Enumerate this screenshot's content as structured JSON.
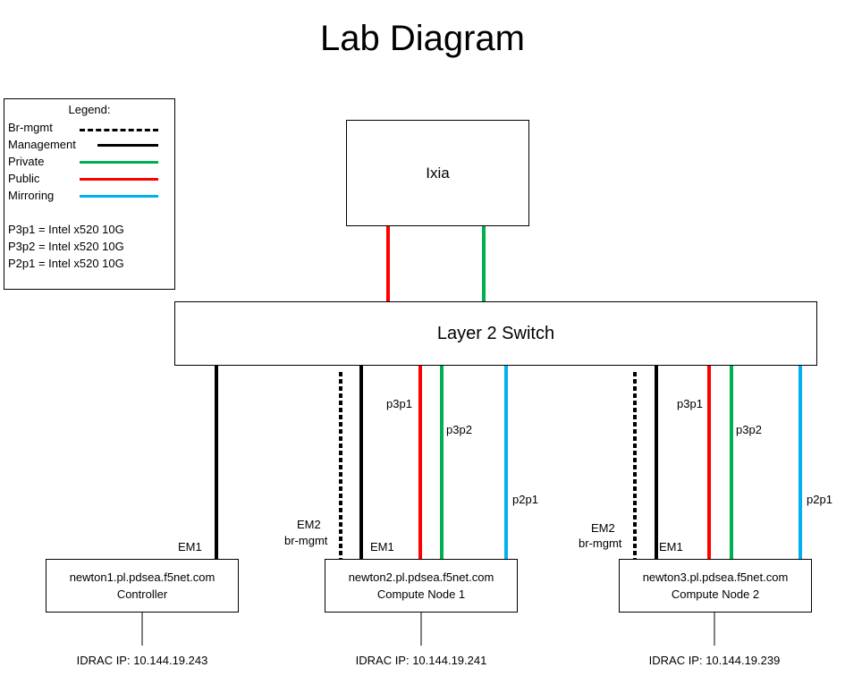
{
  "title": "Lab Diagram",
  "legend": {
    "heading": "Legend:",
    "items": [
      {
        "label": "Br-mgmt",
        "color": "#000000",
        "style": "dashed"
      },
      {
        "label": "Management",
        "color": "#000000",
        "style": "solid"
      },
      {
        "label": "Private",
        "color": "#00b050",
        "style": "solid"
      },
      {
        "label": "Public",
        "color": "#ff0000",
        "style": "solid"
      },
      {
        "label": "Mirroring",
        "color": "#00b0f0",
        "style": "solid"
      }
    ],
    "notes": [
      "P3p1 = Intel x520 10G",
      "P3p2 = Intel x520 10G",
      "P2p1 = Intel x520 10G"
    ]
  },
  "devices": {
    "ixia": "Ixia",
    "switch": "Layer 2 Switch"
  },
  "nodes": [
    {
      "host": "newton1.pl.pdsea.f5net.com",
      "role": "Controller",
      "idrac": "IDRAC IP: 10.144.19.243"
    },
    {
      "host": "newton2.pl.pdsea.f5net.com",
      "role": "Compute Node 1",
      "idrac": "IDRAC IP: 10.144.19.241"
    },
    {
      "host": "newton3.pl.pdsea.f5net.com",
      "role": "Compute Node 2",
      "idrac": "IDRAC IP: 10.144.19.239"
    }
  ],
  "port_labels": {
    "em1": "EM1",
    "em2": "EM2",
    "br_mgmt": "br-mgmt",
    "p3p1": "p3p1",
    "p3p2": "p3p2",
    "p2p1": "p2p1"
  },
  "connections": [
    {
      "from": "Ixia",
      "to": "Layer 2 Switch",
      "type": "Public"
    },
    {
      "from": "Ixia",
      "to": "Layer 2 Switch",
      "type": "Private"
    },
    {
      "from": "Layer 2 Switch",
      "to": "newton1.pl.pdsea.f5net.com",
      "type": "Management",
      "port": "EM1"
    },
    {
      "from": "Layer 2 Switch",
      "to": "newton2.pl.pdsea.f5net.com",
      "type": "Br-mgmt",
      "port": "EM2"
    },
    {
      "from": "Layer 2 Switch",
      "to": "newton2.pl.pdsea.f5net.com",
      "type": "Management",
      "port": "EM1"
    },
    {
      "from": "Layer 2 Switch",
      "to": "newton2.pl.pdsea.f5net.com",
      "type": "Public",
      "port": "p3p1"
    },
    {
      "from": "Layer 2 Switch",
      "to": "newton2.pl.pdsea.f5net.com",
      "type": "Private",
      "port": "p3p2"
    },
    {
      "from": "Layer 2 Switch",
      "to": "newton2.pl.pdsea.f5net.com",
      "type": "Mirroring",
      "port": "p2p1"
    },
    {
      "from": "Layer 2 Switch",
      "to": "newton3.pl.pdsea.f5net.com",
      "type": "Br-mgmt",
      "port": "EM2"
    },
    {
      "from": "Layer 2 Switch",
      "to": "newton3.pl.pdsea.f5net.com",
      "type": "Management",
      "port": "EM1"
    },
    {
      "from": "Layer 2 Switch",
      "to": "newton3.pl.pdsea.f5net.com",
      "type": "Public",
      "port": "p3p1"
    },
    {
      "from": "Layer 2 Switch",
      "to": "newton3.pl.pdsea.f5net.com",
      "type": "Private",
      "port": "p3p2"
    },
    {
      "from": "Layer 2 Switch",
      "to": "newton3.pl.pdsea.f5net.com",
      "type": "Mirroring",
      "port": "p2p1"
    }
  ]
}
